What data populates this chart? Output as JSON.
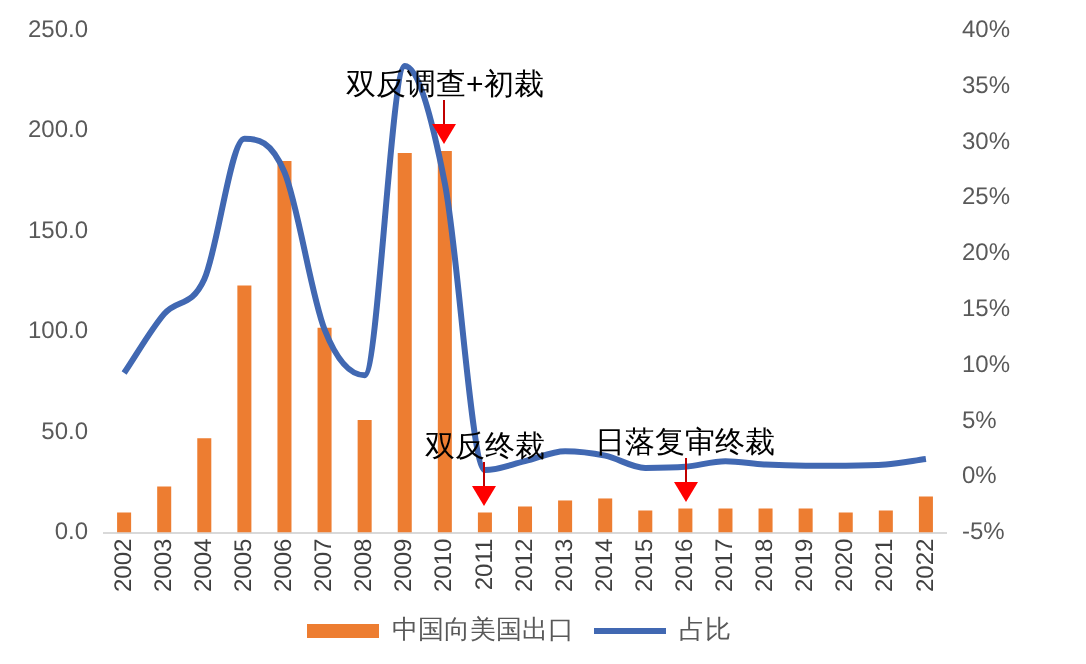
{
  "chart_data": {
    "type": "bar",
    "categories": [
      "2002",
      "2003",
      "2004",
      "2005",
      "2006",
      "2007",
      "2008",
      "2009",
      "2010",
      "2011",
      "2012",
      "2013",
      "2014",
      "2015",
      "2016",
      "2017",
      "2018",
      "2019",
      "2020",
      "2021",
      "2022"
    ],
    "series": [
      {
        "name": "中国向美国出口",
        "type": "bar",
        "color": "#ed7d31",
        "values": [
          10,
          23,
          47,
          123,
          185,
          102,
          56,
          189,
          190,
          10,
          13,
          16,
          17,
          11,
          12,
          12,
          12,
          12,
          10,
          11,
          18
        ]
      },
      {
        "name": "占比",
        "type": "line",
        "axis": "y2",
        "color": "#4168b2",
        "values": [
          9.3,
          14.6,
          17.7,
          30.3,
          27.3,
          13.2,
          9.1,
          36.8,
          26.3,
          0.6,
          1.4,
          2.3,
          1.9,
          0.8,
          0.9,
          1.4,
          1.1,
          1.0,
          1.0,
          1.1,
          1.6
        ]
      }
    ],
    "ylim": [
      0,
      250
    ],
    "yticks": [
      {
        "value": 0,
        "label": "0.0"
      },
      {
        "value": 50,
        "label": "50.0"
      },
      {
        "value": 100,
        "label": "100.0"
      },
      {
        "value": 150,
        "label": "150.0"
      },
      {
        "value": 200,
        "label": "200.0"
      },
      {
        "value": 250,
        "label": "250.0"
      }
    ],
    "y2lim": [
      -5,
      40
    ],
    "y2ticks": [
      {
        "value": -5,
        "label": "-5%"
      },
      {
        "value": 0,
        "label": "0%"
      },
      {
        "value": 5,
        "label": "5%"
      },
      {
        "value": 10,
        "label": "10%"
      },
      {
        "value": 15,
        "label": "15%"
      },
      {
        "value": 20,
        "label": "20%"
      },
      {
        "value": 25,
        "label": "25%"
      },
      {
        "value": 30,
        "label": "30%"
      },
      {
        "value": 35,
        "label": "35%"
      },
      {
        "value": 40,
        "label": "40%"
      }
    ],
    "annotations": [
      {
        "text": "双反调查+初裁",
        "x": "2010",
        "y": 190
      },
      {
        "text": "双反终裁",
        "x": "2011",
        "y": 10
      },
      {
        "text": "日落复审终裁",
        "x": "2016",
        "y": 12
      }
    ],
    "grid": false,
    "legend": "bottom",
    "marker": "none",
    "line_style": "solid"
  }
}
